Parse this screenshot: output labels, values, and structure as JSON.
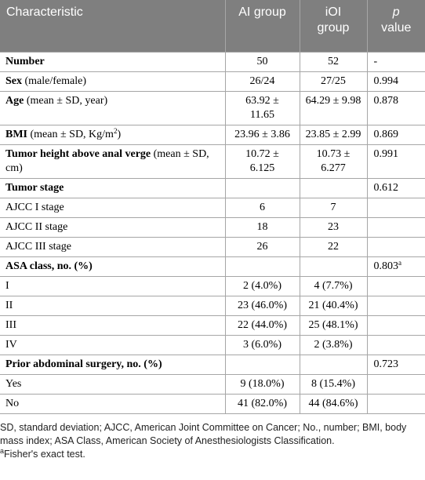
{
  "table": {
    "header": [
      "Characteristic",
      "AI group",
      {
        "lines": [
          "iOI",
          "group"
        ]
      },
      {
        "lines": [
          {
            "text": "p",
            "style": "italic"
          },
          "value"
        ]
      }
    ],
    "rows": [
      [
        [
          {
            "text": "Number",
            "style": "bold"
          }
        ],
        "50",
        "52",
        "-"
      ],
      [
        [
          {
            "text": "Sex",
            "style": "bold"
          },
          " (male/female)"
        ],
        "26/24",
        "27/25",
        "0.994"
      ],
      [
        [
          {
            "text": "Age",
            "style": "bold"
          },
          " (mean ± SD, year)"
        ],
        {
          "lines": [
            "63.92 ±",
            "11.65"
          ]
        },
        "64.29 ± 9.98",
        "0.878"
      ],
      [
        [
          {
            "text": "BMI",
            "style": "bold"
          },
          " (mean ± SD, Kg/m",
          {
            "text": "2",
            "style": "sup"
          },
          ")"
        ],
        "23.96 ± 3.86",
        "23.85 ± 2.99",
        "0.869"
      ],
      [
        [
          {
            "text": "Tumor height above anal verge",
            "style": "bold"
          },
          " (mean ± SD, cm)"
        ],
        {
          "lines": [
            "10.72 ±",
            "6.125"
          ]
        },
        {
          "lines": [
            "10.73 ±",
            "6.277"
          ]
        },
        "0.991"
      ],
      [
        [
          {
            "text": "Tumor stage",
            "style": "bold"
          }
        ],
        "",
        "",
        "0.612"
      ],
      [
        [
          "AJCC I stage"
        ],
        "6",
        "7",
        ""
      ],
      [
        [
          "AJCC II stage"
        ],
        "18",
        "23",
        ""
      ],
      [
        [
          "AJCC III stage"
        ],
        "26",
        "22",
        ""
      ],
      [
        [
          {
            "text": "ASA class, no. (%)",
            "style": "bold"
          }
        ],
        "",
        "",
        [
          {
            "text": "0.803"
          },
          {
            "text": "a",
            "style": "sup"
          }
        ]
      ],
      [
        [
          "I"
        ],
        "2 (4.0%)",
        "4 (7.7%)",
        ""
      ],
      [
        [
          "II"
        ],
        "23 (46.0%)",
        "21 (40.4%)",
        ""
      ],
      [
        [
          "III"
        ],
        "22 (44.0%)",
        "25 (48.1%)",
        ""
      ],
      [
        [
          "IV"
        ],
        "3 (6.0%)",
        "2 (3.8%)",
        ""
      ],
      [
        [
          {
            "text": "Prior abdominal surgery, no. (%)",
            "style": "bold"
          }
        ],
        "",
        "",
        "0.723"
      ],
      [
        [
          "Yes"
        ],
        "9 (18.0%)",
        "8 (15.4%)",
        ""
      ],
      [
        [
          "No"
        ],
        "41 (82.0%)",
        "44 (84.6%)",
        ""
      ]
    ]
  },
  "footnote": {
    "text": "SD, standard deviation; AJCC, American Joint Committee on Cancer; No., number; BMI, body mass index; ASA Class, American Society of Anesthesiologists Classification.",
    "notes": [
      [
        {
          "text": "a",
          "style": "sup"
        },
        "Fisher's exact test."
      ]
    ]
  }
}
